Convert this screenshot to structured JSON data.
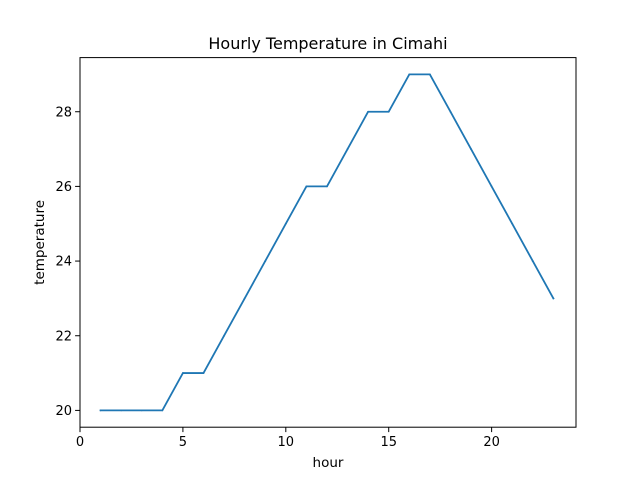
{
  "chart_data": {
    "type": "line",
    "title": "Hourly Temperature in Cimahi",
    "xlabel": "hour",
    "ylabel": "temperature",
    "xlim": [
      0,
      24.1
    ],
    "ylim": [
      19.55,
      29.45
    ],
    "xticks": [
      0,
      5,
      10,
      15,
      20
    ],
    "yticks": [
      20,
      22,
      24,
      26,
      28
    ],
    "grid": false,
    "series": [
      {
        "color": "#1f77b4",
        "x": [
          1,
          2,
          3,
          4,
          5,
          6,
          7,
          8,
          9,
          10,
          11,
          12,
          13,
          14,
          15,
          16,
          17,
          18,
          19,
          20,
          21,
          22,
          23
        ],
        "y": [
          20,
          20,
          20,
          20,
          21,
          21,
          22,
          23,
          24,
          25,
          26,
          26,
          27,
          28,
          28,
          29,
          29,
          28,
          27,
          26,
          25,
          24,
          23
        ]
      }
    ]
  }
}
